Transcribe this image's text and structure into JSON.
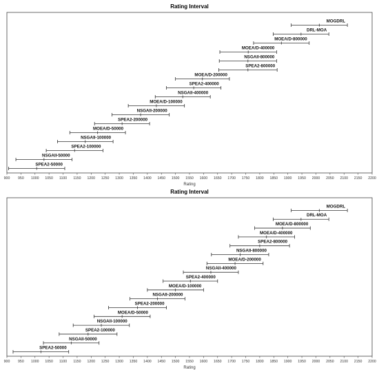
{
  "chart_data": [
    {
      "type": "interval",
      "title": "Rating Interval",
      "xlabel": "Rating",
      "ylabel": "",
      "xlim": [
        900,
        2200
      ],
      "xticks": [
        900,
        950,
        1000,
        1050,
        1100,
        1150,
        1200,
        1250,
        1300,
        1350,
        1400,
        1450,
        1500,
        1550,
        1600,
        1650,
        1700,
        1750,
        1800,
        1850,
        1900,
        1950,
        2000,
        2050,
        2100,
        2150,
        2200
      ],
      "grid": false,
      "intervals": [
        {
          "name": "MOGDRL",
          "low": 1912,
          "high": 2112,
          "mean": 2012
        },
        {
          "name": "DRL-MOA",
          "low": 1848,
          "high": 2046,
          "mean": 1947
        },
        {
          "name": "MOEA/D-800000",
          "low": 1778,
          "high": 1976,
          "mean": 1877
        },
        {
          "name": "MOEA/D-400000",
          "low": 1658,
          "high": 1860,
          "mean": 1759
        },
        {
          "name": "NSGAII-800000",
          "low": 1656,
          "high": 1860,
          "mean": 1758
        },
        {
          "name": "SPEA2-800000",
          "low": 1654,
          "high": 1862,
          "mean": 1758
        },
        {
          "name": "MOEA/D-200000",
          "low": 1500,
          "high": 1692,
          "mean": 1596
        },
        {
          "name": "SPEA2-400000",
          "low": 1468,
          "high": 1662,
          "mean": 1565
        },
        {
          "name": "NSGAII-400000",
          "low": 1428,
          "high": 1624,
          "mean": 1526
        },
        {
          "name": "MOEA/D-100000",
          "low": 1332,
          "high": 1532,
          "mean": 1432
        },
        {
          "name": "NSGAII-200000",
          "low": 1274,
          "high": 1478,
          "mean": 1376
        },
        {
          "name": "SPEA2-200000",
          "low": 1212,
          "high": 1408,
          "mean": 1310
        },
        {
          "name": "MOEA/D-50000",
          "low": 1124,
          "high": 1322,
          "mean": 1223
        },
        {
          "name": "NSGAII-100000",
          "low": 1080,
          "high": 1278,
          "mean": 1179
        },
        {
          "name": "SPEA2-100000",
          "low": 1040,
          "high": 1242,
          "mean": 1141
        },
        {
          "name": "NSGAII-50000",
          "low": 932,
          "high": 1132,
          "mean": 1032
        },
        {
          "name": "SPEA2-50000",
          "low": 906,
          "high": 1106,
          "mean": 1006
        }
      ]
    },
    {
      "type": "interval",
      "title": "Rating Interval",
      "xlabel": "Rating",
      "ylabel": "",
      "xlim": [
        900,
        2200
      ],
      "xticks": [
        900,
        950,
        1000,
        1050,
        1100,
        1150,
        1200,
        1250,
        1300,
        1350,
        1400,
        1450,
        1500,
        1550,
        1600,
        1650,
        1700,
        1750,
        1800,
        1850,
        1900,
        1950,
        2000,
        2050,
        2100,
        2150,
        2200
      ],
      "grid": false,
      "intervals": [
        {
          "name": "MOGDRL",
          "low": 1912,
          "high": 2112,
          "mean": 2012
        },
        {
          "name": "DRL-MOA",
          "low": 1848,
          "high": 2046,
          "mean": 1947
        },
        {
          "name": "MOEA/D-800000",
          "low": 1782,
          "high": 1980,
          "mean": 1881
        },
        {
          "name": "MOEA/D-400000",
          "low": 1724,
          "high": 1924,
          "mean": 1824
        },
        {
          "name": "SPEA2-800000",
          "low": 1694,
          "high": 1906,
          "mean": 1800
        },
        {
          "name": "NSGAII-800000",
          "low": 1628,
          "high": 1832,
          "mean": 1730
        },
        {
          "name": "MOEA/D-200000",
          "low": 1612,
          "high": 1812,
          "mean": 1712
        },
        {
          "name": "NSGAII-400000",
          "low": 1528,
          "high": 1724,
          "mean": 1626
        },
        {
          "name": "SPEA2-400000",
          "low": 1456,
          "high": 1650,
          "mean": 1553
        },
        {
          "name": "MOEA/D-100000",
          "low": 1400,
          "high": 1600,
          "mean": 1500
        },
        {
          "name": "NSGAII-200000",
          "low": 1338,
          "high": 1534,
          "mean": 1436
        },
        {
          "name": "SPEA2-200000",
          "low": 1262,
          "high": 1468,
          "mean": 1365
        },
        {
          "name": "MOEA/D-50000",
          "low": 1210,
          "high": 1410,
          "mean": 1310
        },
        {
          "name": "NSGAII-100000",
          "low": 1136,
          "high": 1336,
          "mean": 1236
        },
        {
          "name": "SPEA2-100000",
          "low": 1086,
          "high": 1292,
          "mean": 1189
        },
        {
          "name": "NSGAII-50000",
          "low": 1030,
          "high": 1228,
          "mean": 1129
        },
        {
          "name": "SPEA2-50000",
          "low": 922,
          "high": 1120,
          "mean": 1021
        }
      ]
    }
  ]
}
